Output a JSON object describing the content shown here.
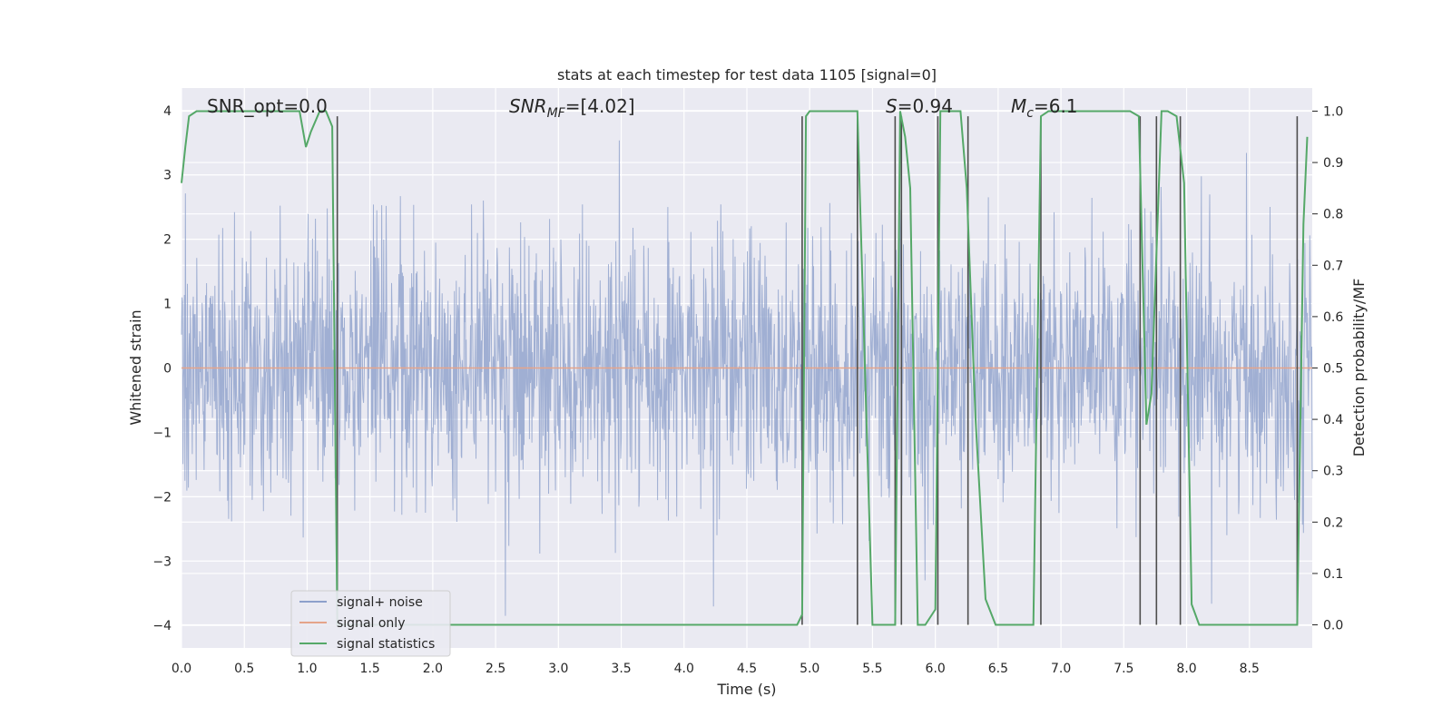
{
  "chart_data": {
    "type": "line",
    "title": "stats at each timestep for test data 1105 [signal=0]",
    "xlabel": "Time (s)",
    "ylabel": "Whitened strain",
    "y2label": "Detection probability/MF",
    "xlim": [
      0,
      9.0
    ],
    "ylim": [
      -4.35,
      4.35
    ],
    "y2lim": [
      -0.045,
      1.045
    ],
    "x_ticks": [
      0.0,
      0.5,
      1.0,
      1.5,
      2.0,
      2.5,
      3.0,
      3.5,
      4.0,
      4.5,
      5.0,
      5.5,
      6.0,
      6.5,
      7.0,
      7.5,
      8.0,
      8.5
    ],
    "x_tick_labels": [
      "0.0",
      "0.5",
      "1.0",
      "1.5",
      "2.0",
      "2.5",
      "3.0",
      "3.5",
      "4.0",
      "4.5",
      "5.0",
      "5.5",
      "6.0",
      "6.5",
      "7.0",
      "7.5",
      "8.0",
      "8.5"
    ],
    "y_ticks": [
      4,
      3,
      2,
      1,
      0,
      -1,
      -2,
      -3,
      -4
    ],
    "y_tick_labels": [
      "4",
      "3",
      "2",
      "1",
      "0",
      "−1",
      "−2",
      "−3",
      "−4"
    ],
    "y2_ticks": [
      1.0,
      0.9,
      0.8,
      0.7,
      0.6,
      0.5,
      0.4,
      0.3,
      0.2,
      0.1,
      0.0
    ],
    "y2_tick_labels": [
      "1.0",
      "0.9",
      "0.8",
      "0.7",
      "0.6",
      "0.5",
      "0.4",
      "0.3",
      "0.2",
      "0.1",
      "0.0"
    ],
    "grid": true,
    "legend_position": "lower-left",
    "annotations": [
      {
        "text": "SNR_opt=0.0",
        "x": 0.2,
        "y": 4.0
      },
      {
        "text": "SNR_MF=[4.02]",
        "x": 2.6,
        "y": 4.0
      },
      {
        "text": "S=0.94",
        "x": 5.6,
        "y": 4.0
      },
      {
        "text": "M_c=6.1",
        "x": 6.6,
        "y": 4.0
      }
    ],
    "series": [
      {
        "name": "signal+ noise",
        "color": "#8da0cb",
        "axis": "left",
        "sample_rate_hz": 256,
        "noise_std": 1.0,
        "noise_range": [
          -4.0,
          4.0
        ]
      },
      {
        "name": "signal only",
        "color": "#e5a48a",
        "axis": "left",
        "value": 0.0
      },
      {
        "name": "signal statistics",
        "color": "#55a868",
        "axis": "right",
        "x": [
          0.0,
          0.03,
          0.06,
          0.12,
          0.25,
          0.5,
          0.75,
          0.94,
          0.99,
          1.03,
          1.1,
          1.15,
          1.2,
          1.24,
          1.29,
          1.33,
          1.38,
          1.6,
          2.0,
          2.5,
          3.0,
          3.5,
          4.0,
          4.5,
          4.9,
          4.94,
          4.97,
          5.0,
          5.1,
          5.38,
          5.5,
          5.56,
          5.68,
          5.72,
          5.76,
          5.8,
          5.86,
          5.92,
          6.0,
          6.04,
          6.08,
          6.2,
          6.25,
          6.32,
          6.4,
          6.48,
          6.6,
          6.78,
          6.84,
          6.9,
          7.0,
          7.55,
          7.62,
          7.68,
          7.72,
          7.8,
          7.85,
          7.92,
          7.98,
          8.04,
          8.1,
          8.5,
          8.88,
          8.93,
          8.96
        ],
        "y": [
          0.86,
          0.93,
          0.99,
          1.0,
          1.0,
          1.0,
          1.0,
          1.0,
          0.93,
          0.96,
          1.0,
          1.0,
          0.97,
          0.0,
          0.0,
          0.0,
          0.0,
          0.0,
          0.0,
          0.0,
          0.0,
          0.0,
          0.0,
          0.0,
          0.0,
          0.02,
          0.99,
          1.0,
          1.0,
          1.0,
          0.0,
          0.0,
          0.0,
          1.0,
          0.95,
          0.85,
          0.0,
          0.0,
          0.03,
          1.0,
          1.0,
          1.0,
          0.85,
          0.4,
          0.05,
          0.0,
          0.0,
          0.0,
          0.99,
          1.0,
          1.0,
          1.0,
          0.99,
          0.39,
          0.45,
          1.0,
          1.0,
          0.99,
          0.86,
          0.04,
          0.0,
          0.0,
          0.0,
          0.78,
          0.95
        ]
      },
      {
        "name": "",
        "color": "#4d4d4d",
        "axis": "right",
        "kind": "vertical-lines",
        "x": [
          1.24,
          4.94,
          5.38,
          5.68,
          5.73,
          6.02,
          6.26,
          6.84,
          7.63,
          7.76,
          7.95,
          8.88
        ]
      }
    ]
  }
}
